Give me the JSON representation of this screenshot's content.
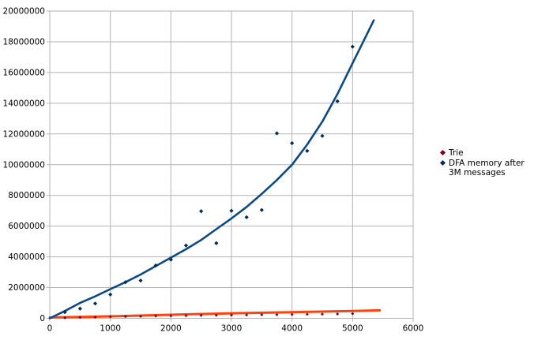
{
  "chart": {
    "background_color": "#ffffff",
    "grid_color": "#b3b3b3",
    "axis_color": "#b3b3b3",
    "text_color": "#000000",
    "legend": {
      "position": "right",
      "items": [
        {
          "label": "Trie",
          "marker": "diamond",
          "marker_color": "#7e0021"
        },
        {
          "label": "DFA memory after 3M messages",
          "marker": "diamond",
          "marker_color": "#002d5a"
        }
      ]
    }
  },
  "chart_data": {
    "type": "scatter",
    "title": "",
    "xlabel": "",
    "ylabel": "",
    "grid": true,
    "legend_position": "right",
    "x_axis": {
      "min": 0,
      "max": 6000,
      "tick_step": 1000,
      "ticks": [
        0,
        1000,
        2000,
        3000,
        4000,
        5000,
        6000
      ]
    },
    "y_axis": {
      "min": 0,
      "max": 20000000,
      "tick_step": 2000000,
      "ticks": [
        0,
        2000000,
        4000000,
        6000000,
        8000000,
        10000000,
        12000000,
        14000000,
        16000000,
        18000000,
        20000000
      ]
    },
    "series": [
      {
        "name": "Trie",
        "marker_color": "#7e0021",
        "marker_size": 2,
        "trend_color": "#ff420e",
        "trend_width": 3,
        "x": [
          250,
          500,
          750,
          1000,
          1250,
          1500,
          1750,
          2000,
          2250,
          2500,
          2750,
          3000,
          3250,
          3500,
          3750,
          4000,
          4250,
          4500,
          4750,
          5000
        ],
        "y": [
          30000,
          55000,
          80000,
          100000,
          115000,
          130000,
          145000,
          160000,
          175000,
          190000,
          200000,
          210000,
          220000,
          230000,
          240000,
          250000,
          260000,
          270000,
          285000,
          300000
        ],
        "trend": [
          [
            0,
            50000
          ],
          [
            1000,
            130000
          ],
          [
            2000,
            230000
          ],
          [
            3000,
            330000
          ],
          [
            4000,
            400000
          ],
          [
            5000,
            470000
          ],
          [
            5450,
            520000
          ]
        ]
      },
      {
        "name": "DFA memory after 3M messages",
        "marker_color": "#002d5a",
        "marker_size": 2.6,
        "trend_color": "#0b4a85",
        "trend_width": 2.6,
        "x": [
          250,
          500,
          750,
          1000,
          1250,
          1500,
          1750,
          2000,
          2250,
          2500,
          2750,
          3000,
          3250,
          3500,
          3750,
          4000,
          4250,
          4500,
          4750,
          5000
        ],
        "y": [
          400000,
          630000,
          960000,
          1550000,
          2350000,
          2460000,
          3440000,
          3820000,
          4740000,
          6970000,
          4890000,
          7000000,
          6580000,
          7050000,
          12040000,
          11400000,
          10900000,
          11870000,
          14130000,
          17680000
        ],
        "trend": [
          [
            0,
            0
          ],
          [
            250,
            480000
          ],
          [
            500,
            1000000
          ],
          [
            750,
            1430000
          ],
          [
            1000,
            1900000
          ],
          [
            1250,
            2350000
          ],
          [
            1500,
            2850000
          ],
          [
            1750,
            3400000
          ],
          [
            2000,
            3950000
          ],
          [
            2250,
            4500000
          ],
          [
            2500,
            5100000
          ],
          [
            2750,
            5800000
          ],
          [
            3000,
            6500000
          ],
          [
            3250,
            7250000
          ],
          [
            3500,
            8100000
          ],
          [
            3750,
            9000000
          ],
          [
            4000,
            10000000
          ],
          [
            4250,
            11300000
          ],
          [
            4500,
            12800000
          ],
          [
            4750,
            14600000
          ],
          [
            5000,
            16600000
          ],
          [
            5175,
            18000000
          ],
          [
            5350,
            19400000
          ]
        ]
      }
    ]
  }
}
